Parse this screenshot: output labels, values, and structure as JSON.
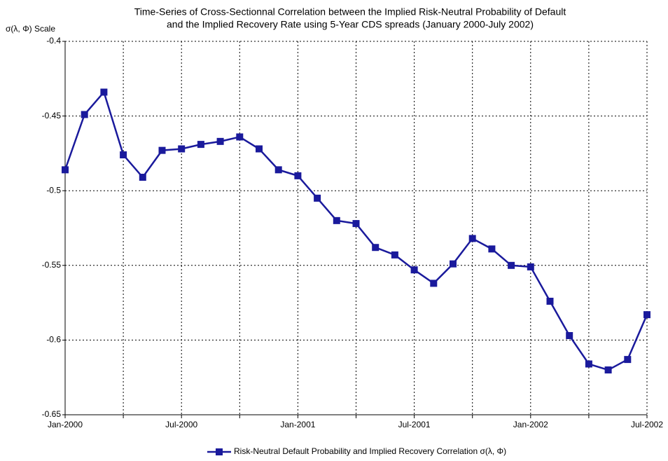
{
  "chart_data": {
    "type": "line",
    "title": [
      "Time-Series of Cross-Sectionnal Correlation between the Implied Risk-Neutral Probability of Default",
      "and the Implied Recovery Rate using 5-Year CDS spreads (January 2000-July 2002)"
    ],
    "y_label": "σ(λ, Φ) Scale",
    "categories": [
      "Jan-2000",
      null,
      null,
      null,
      null,
      null,
      "Jul-2000",
      null,
      null,
      null,
      null,
      null,
      "Jan-2001",
      null,
      null,
      null,
      null,
      null,
      "Jul-2001",
      null,
      null,
      null,
      null,
      null,
      "Jan-2002",
      null,
      null,
      null,
      null,
      null,
      "Jul-2002"
    ],
    "series": [
      {
        "name": "Risk-Neutral Default Probability and Implied Recovery Correlation σ(λ, Φ)",
        "color": "#1a1a9c",
        "values": [
          -0.486,
          -0.449,
          -0.434,
          -0.476,
          -0.491,
          -0.473,
          -0.472,
          -0.469,
          -0.467,
          -0.464,
          -0.472,
          -0.486,
          -0.49,
          -0.505,
          -0.52,
          -0.522,
          -0.538,
          -0.543,
          -0.553,
          -0.562,
          -0.549,
          -0.532,
          -0.539,
          -0.55,
          -0.551,
          -0.574,
          -0.597,
          -0.616,
          -0.62,
          -0.613,
          -0.583
        ]
      }
    ],
    "ylim": [
      -0.65,
      -0.4
    ],
    "yticks": [
      -0.65,
      -0.6,
      -0.55,
      -0.5,
      -0.45,
      -0.4
    ],
    "grid": true,
    "legend": "bottom"
  }
}
